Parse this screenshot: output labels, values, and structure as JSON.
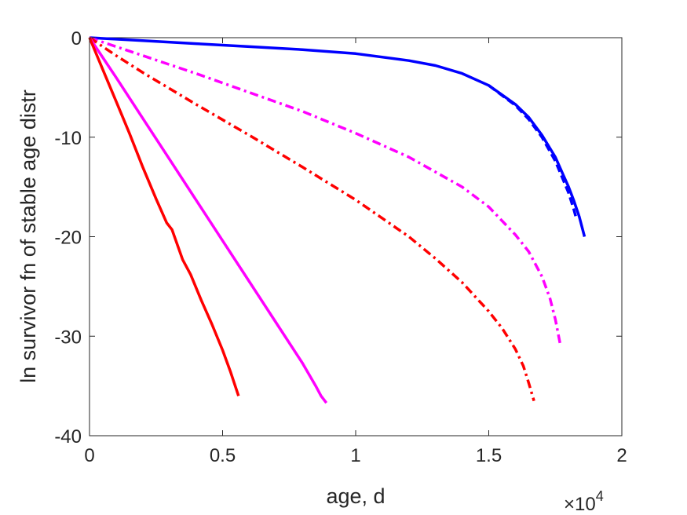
{
  "chart_data": {
    "type": "line",
    "xlabel": "age, d",
    "ylabel": "ln survivor fn of stable age distr",
    "x_multiplier_label": {
      "base": "×10",
      "exponent": "4"
    },
    "xlim": [
      0,
      20000
    ],
    "ylim": [
      -40,
      0
    ],
    "x_ticks": [
      0,
      5000,
      10000,
      15000,
      20000
    ],
    "x_tick_labels": [
      "0",
      "0.5",
      "1",
      "1.5",
      "2"
    ],
    "y_ticks": [
      -40,
      -30,
      -20,
      -10,
      0
    ],
    "y_tick_labels": [
      "-40",
      "-30",
      "-20",
      "-10",
      "0"
    ],
    "grid": false,
    "series": [
      {
        "color": "#0000ff",
        "style": "solid",
        "x": [
          0,
          2000,
          4000,
          6000,
          8000,
          10000,
          12000,
          13000,
          14000,
          15000,
          16000,
          16500,
          17000,
          17500,
          17800,
          18000,
          18200,
          18400,
          18600
        ],
        "y": [
          0,
          -0.3,
          -0.6,
          -0.9,
          -1.2,
          -1.6,
          -2.3,
          -2.8,
          -3.6,
          -4.8,
          -6.7,
          -8.0,
          -9.8,
          -12.0,
          -13.8,
          -15.0,
          -16.4,
          -18.0,
          -20.0
        ]
      },
      {
        "color": "#0000ff",
        "style": "dashed",
        "x": [
          15000,
          16000,
          16500,
          17000,
          17500,
          17800,
          18000,
          18200,
          18300
        ],
        "y": [
          -4.8,
          -6.8,
          -8.2,
          -10.0,
          -12.4,
          -14.3,
          -15.6,
          -17.3,
          -18.3
        ]
      },
      {
        "color": "#ff00ff",
        "style": "dashdot",
        "x": [
          0,
          1000,
          2000,
          4000,
          6000,
          8000,
          10000,
          12000,
          14000,
          15000,
          16000,
          16500,
          17000,
          17300,
          17500,
          17700
        ],
        "y": [
          0,
          -0.9,
          -1.8,
          -3.6,
          -5.5,
          -7.4,
          -9.6,
          -12.0,
          -15.0,
          -17.0,
          -19.8,
          -21.5,
          -24.0,
          -26.2,
          -28.3,
          -31.0
        ]
      },
      {
        "color": "#ff0000",
        "style": "dashdot",
        "x": [
          0,
          1000,
          2000,
          4000,
          6000,
          8000,
          10000,
          12000,
          13000,
          14000,
          15000,
          15500,
          16000,
          16300,
          16500,
          16700
        ],
        "y": [
          0,
          -1.8,
          -3.5,
          -6.7,
          -9.8,
          -13.0,
          -16.3,
          -20.0,
          -22.2,
          -24.6,
          -27.5,
          -29.2,
          -31.3,
          -33.0,
          -34.7,
          -36.5
        ]
      },
      {
        "color": "#ff00ff",
        "style": "solid",
        "x": [
          0,
          1000,
          2000,
          3000,
          4000,
          5000,
          6000,
          7000,
          8000,
          8500,
          8700,
          8900
        ],
        "y": [
          0,
          -4.0,
          -8.1,
          -12.2,
          -16.3,
          -20.4,
          -24.5,
          -28.6,
          -32.7,
          -35.0,
          -36.0,
          -36.7
        ]
      },
      {
        "color": "#ff0000",
        "style": "solid",
        "x": [
          0,
          500,
          1000,
          1500,
          2000,
          2500,
          2900,
          3100,
          3500,
          3800,
          4200,
          4600,
          5000,
          5300,
          5600
        ],
        "y": [
          0,
          -3.2,
          -6.4,
          -9.6,
          -13.0,
          -16.2,
          -18.6,
          -19.3,
          -22.3,
          -23.8,
          -26.4,
          -28.8,
          -31.4,
          -33.6,
          -36.0
        ]
      }
    ]
  }
}
